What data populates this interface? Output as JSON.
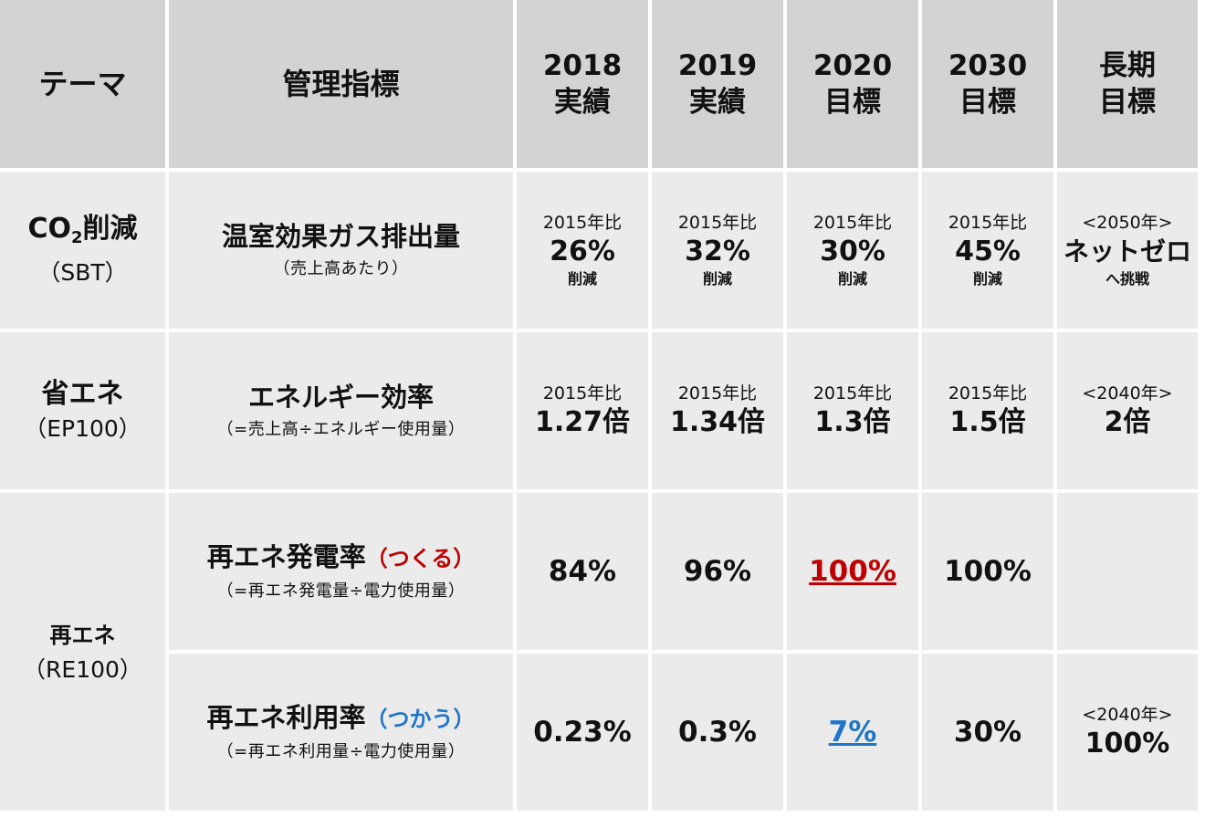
{
  "header": {
    "theme": "テーマ",
    "metric": "管理指標",
    "years": [
      {
        "year": "2018",
        "label": "実績"
      },
      {
        "year": "2019",
        "label": "実績"
      },
      {
        "year": "2020",
        "label": "目標"
      },
      {
        "year": "2030",
        "label": "目標"
      }
    ],
    "long_term": {
      "line1": "長期",
      "line2": "目標"
    }
  },
  "co2": {
    "theme_prefix": "CO",
    "theme_sub": "2",
    "theme_suffix": "削減",
    "theme_note": "（SBT）",
    "metric": "温室効果ガス排出量",
    "metric_note": "（売上高あたり）",
    "cells": [
      {
        "base": "2015年比",
        "value": "26%",
        "unit": "削減"
      },
      {
        "base": "2015年比",
        "value": "32%",
        "unit": "削減"
      },
      {
        "base": "2015年比",
        "value": "30%",
        "unit": "削減"
      },
      {
        "base": "2015年比",
        "value": "45%",
        "unit": "削減"
      }
    ],
    "long_term": {
      "year": "<2050年>",
      "value": "ネットゼロ",
      "note": "へ挑戦"
    }
  },
  "energy": {
    "theme": "省エネ",
    "theme_note": "（EP100）",
    "metric": "エネルギー効率",
    "metric_note": "（=売上高÷エネルギー使用量）",
    "cells": [
      {
        "base": "2015年比",
        "value": "1.27倍"
      },
      {
        "base": "2015年比",
        "value": "1.34倍"
      },
      {
        "base": "2015年比",
        "value": "1.3倍"
      },
      {
        "base": "2015年比",
        "value": "1.5倍"
      }
    ],
    "long_term": {
      "year": "<2040年>",
      "value": "2倍"
    }
  },
  "renewable": {
    "theme": "再エネ",
    "theme_note": "（RE100）",
    "generation": {
      "metric": "再エネ発電率",
      "tag": "（つくる）",
      "metric_note": "（=再エネ発電量÷電力使用量）",
      "values": [
        "84%",
        "96%",
        "100%",
        "100%"
      ],
      "long_term": ""
    },
    "usage": {
      "metric": "再エネ利用率",
      "tag": "（つかう）",
      "metric_note": "（=再エネ利用量÷電力使用量）",
      "values": [
        "0.23%",
        "0.3%",
        "7%",
        "30%"
      ],
      "long_term": {
        "year": "<2040年>",
        "value": "100%"
      }
    }
  },
  "colors": {
    "header_bg": "#d3d3d3",
    "cell_bg": "#ebebeb",
    "highlight_red": "#c00000",
    "highlight_blue": "#1f75c8"
  }
}
